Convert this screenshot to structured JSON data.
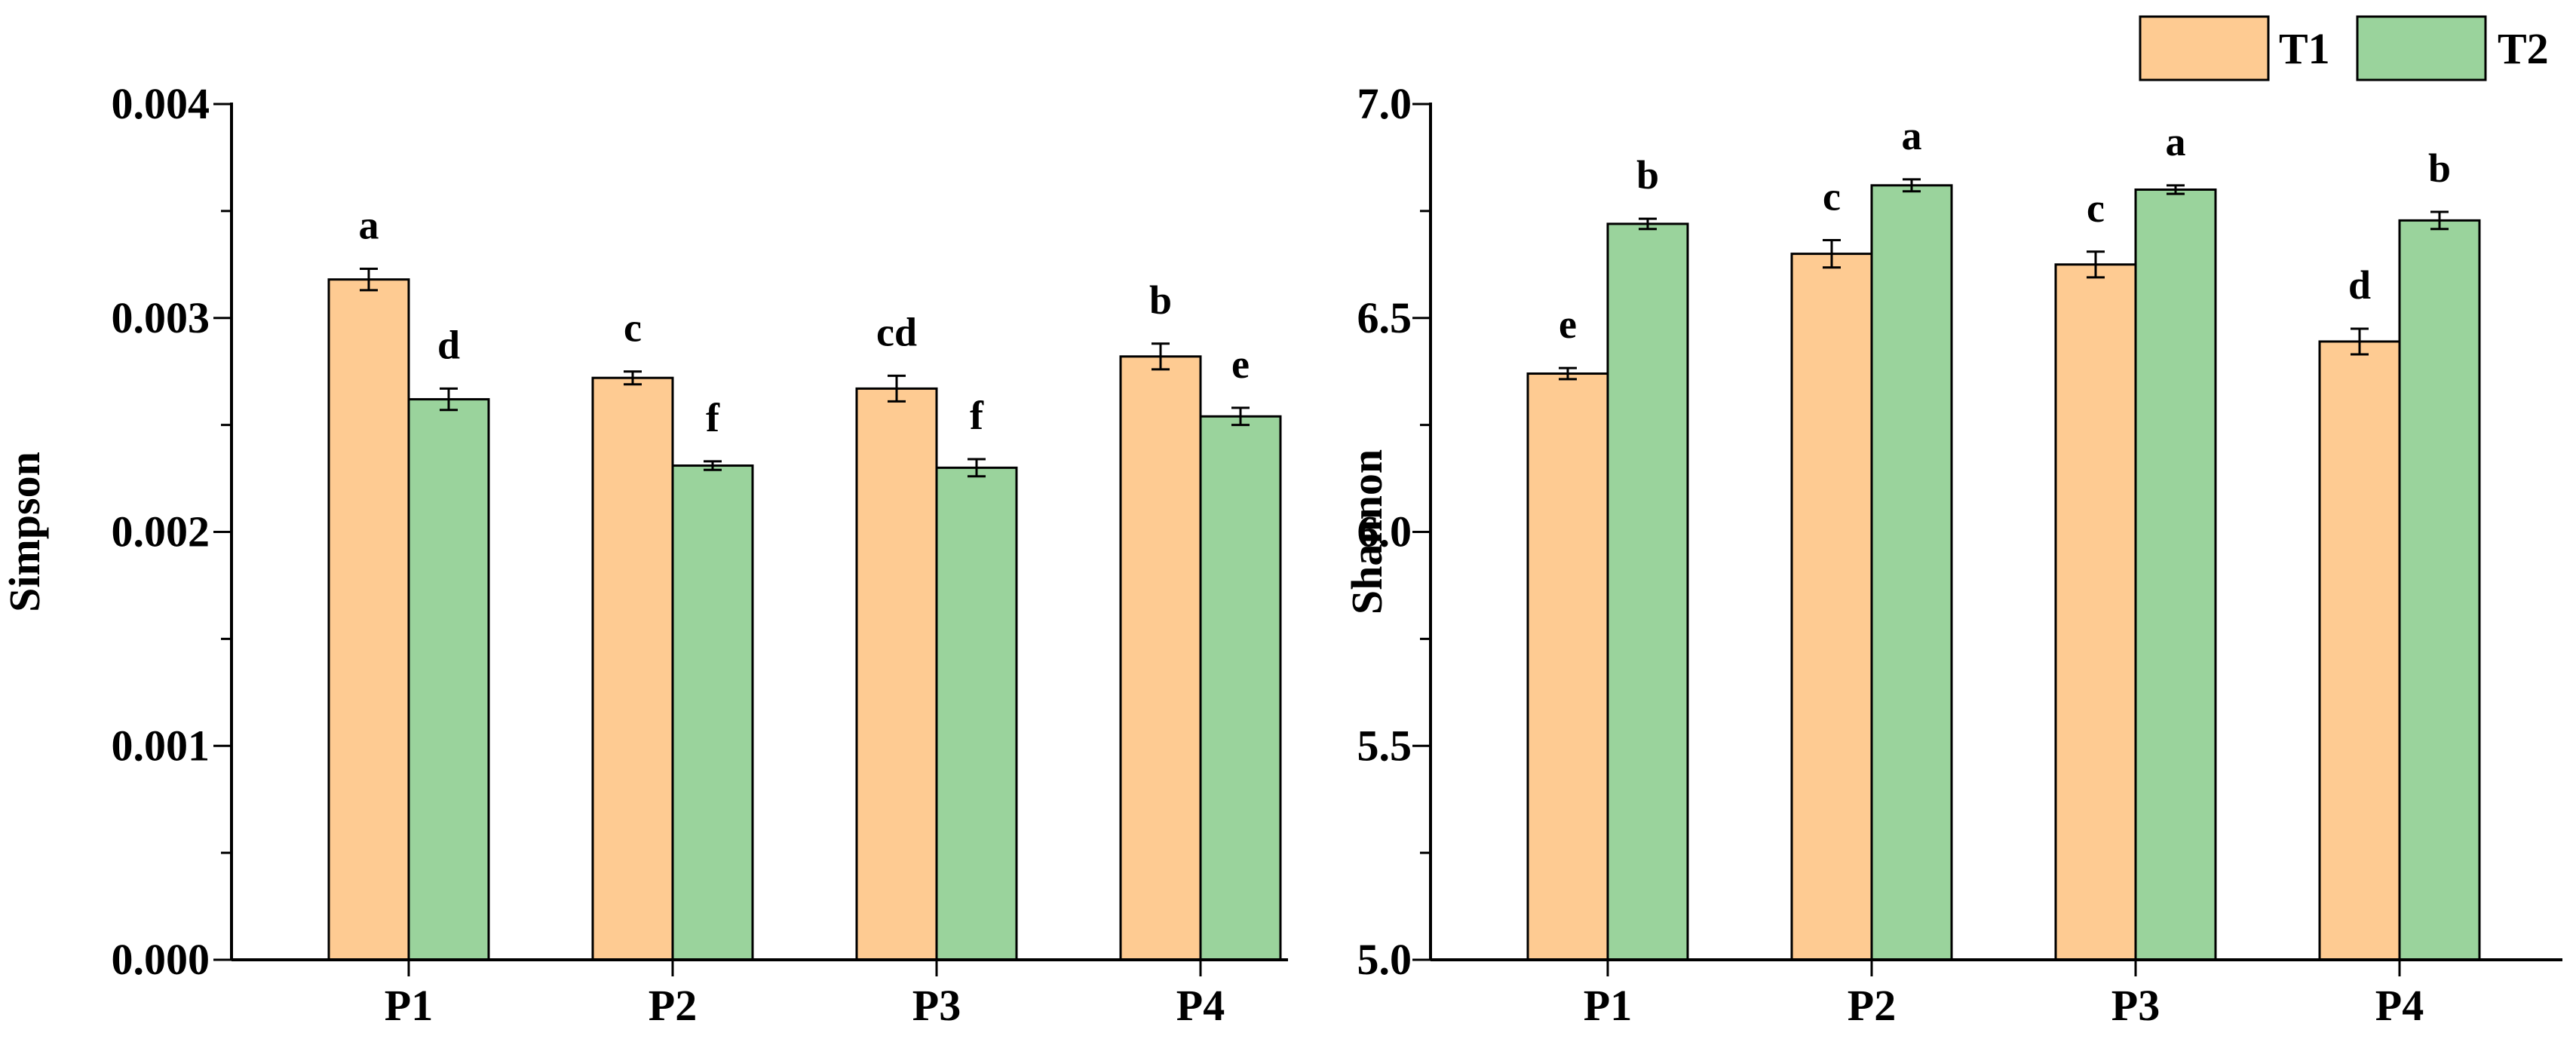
{
  "chart_data": [
    {
      "type": "bar",
      "ylabel": "Simpson",
      "xlabel": "",
      "categories": [
        "P1",
        "P2",
        "P3",
        "P4"
      ],
      "ylim": [
        0,
        0.004
      ],
      "major_ticks": [
        0.0,
        0.001,
        0.002,
        0.003,
        0.004
      ],
      "tick_labels": [
        "0.000",
        "0.001",
        "0.002",
        "0.003",
        "0.004"
      ],
      "series": [
        {
          "name": "T1",
          "values": [
            0.00318,
            0.00272,
            0.00267,
            0.00282
          ],
          "errors": [
            5e-05,
            3e-05,
            6e-05,
            6e-05
          ],
          "letters": [
            "a",
            "c",
            "cd",
            "b"
          ]
        },
        {
          "name": "T2",
          "values": [
            0.00262,
            0.00231,
            0.0023,
            0.00254
          ],
          "errors": [
            5e-05,
            2e-05,
            4e-05,
            4e-05
          ],
          "letters": [
            "d",
            "f",
            "f",
            "e"
          ]
        }
      ]
    },
    {
      "type": "bar",
      "ylabel": "Shannon",
      "xlabel": "",
      "categories": [
        "P1",
        "P2",
        "P3",
        "P4"
      ],
      "ylim": [
        5.0,
        7.0
      ],
      "major_ticks": [
        5.0,
        5.5,
        6.0,
        6.5,
        7.0
      ],
      "tick_labels": [
        "5.0",
        "5.5",
        "6.0",
        "6.5",
        "7.0"
      ],
      "series": [
        {
          "name": "T1",
          "values": [
            6.37,
            6.65,
            6.625,
            6.445
          ],
          "errors": [
            0.013,
            0.032,
            0.03,
            0.03
          ],
          "letters": [
            "e",
            "c",
            "c",
            "d"
          ]
        },
        {
          "name": "T2",
          "values": [
            6.72,
            6.81,
            6.8,
            6.728
          ],
          "errors": [
            0.012,
            0.014,
            0.01,
            0.02
          ],
          "letters": [
            "b",
            "a",
            "a",
            "b"
          ]
        }
      ]
    }
  ],
  "legend": {
    "placement": "top-right",
    "items": [
      {
        "label": "T1",
        "color": "#FECB92"
      },
      {
        "label": "T2",
        "color": "#9AD39C"
      }
    ]
  },
  "colors": {
    "T1": "#FECB92",
    "T2": "#9AD39C",
    "axis": "#000000"
  }
}
